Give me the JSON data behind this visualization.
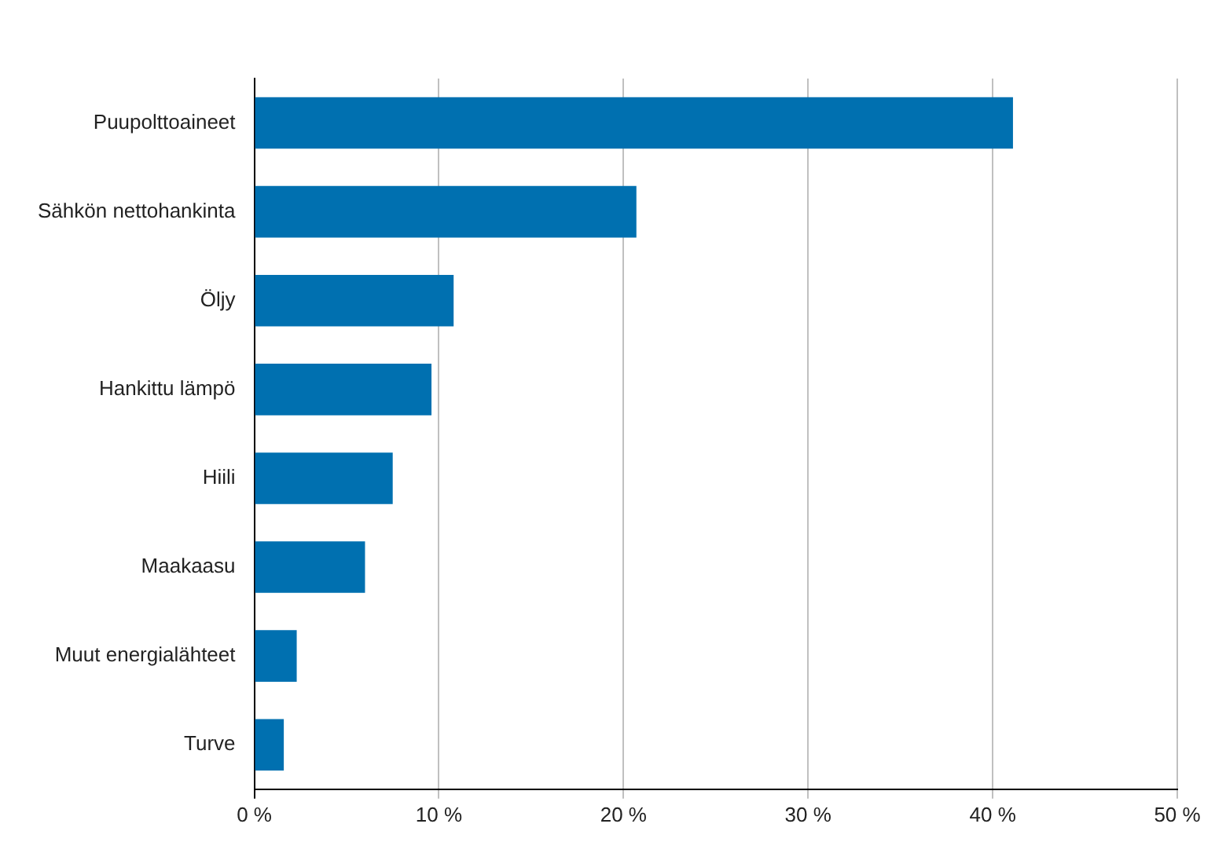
{
  "chart_data": {
    "type": "bar",
    "orientation": "horizontal",
    "categories": [
      "Puupolttoaineet",
      "Sähkön nettohankinta",
      "Öljy",
      "Hankittu lämpö",
      "Hiili",
      "Maakaasu",
      "Muut energialähteet",
      "Turve"
    ],
    "values": [
      41.1,
      20.7,
      10.8,
      9.6,
      7.5,
      6.0,
      2.3,
      1.6
    ],
    "color": "#0070b0",
    "xlim": [
      0,
      50
    ],
    "xticks": [
      {
        "value": 0,
        "label": "0 %"
      },
      {
        "value": 10,
        "label": "10 %"
      },
      {
        "value": 20,
        "label": "20 %"
      },
      {
        "value": 30,
        "label": "30 %"
      },
      {
        "value": 40,
        "label": "40 %"
      },
      {
        "value": 50,
        "label": "50 %"
      }
    ],
    "grid": "x"
  }
}
